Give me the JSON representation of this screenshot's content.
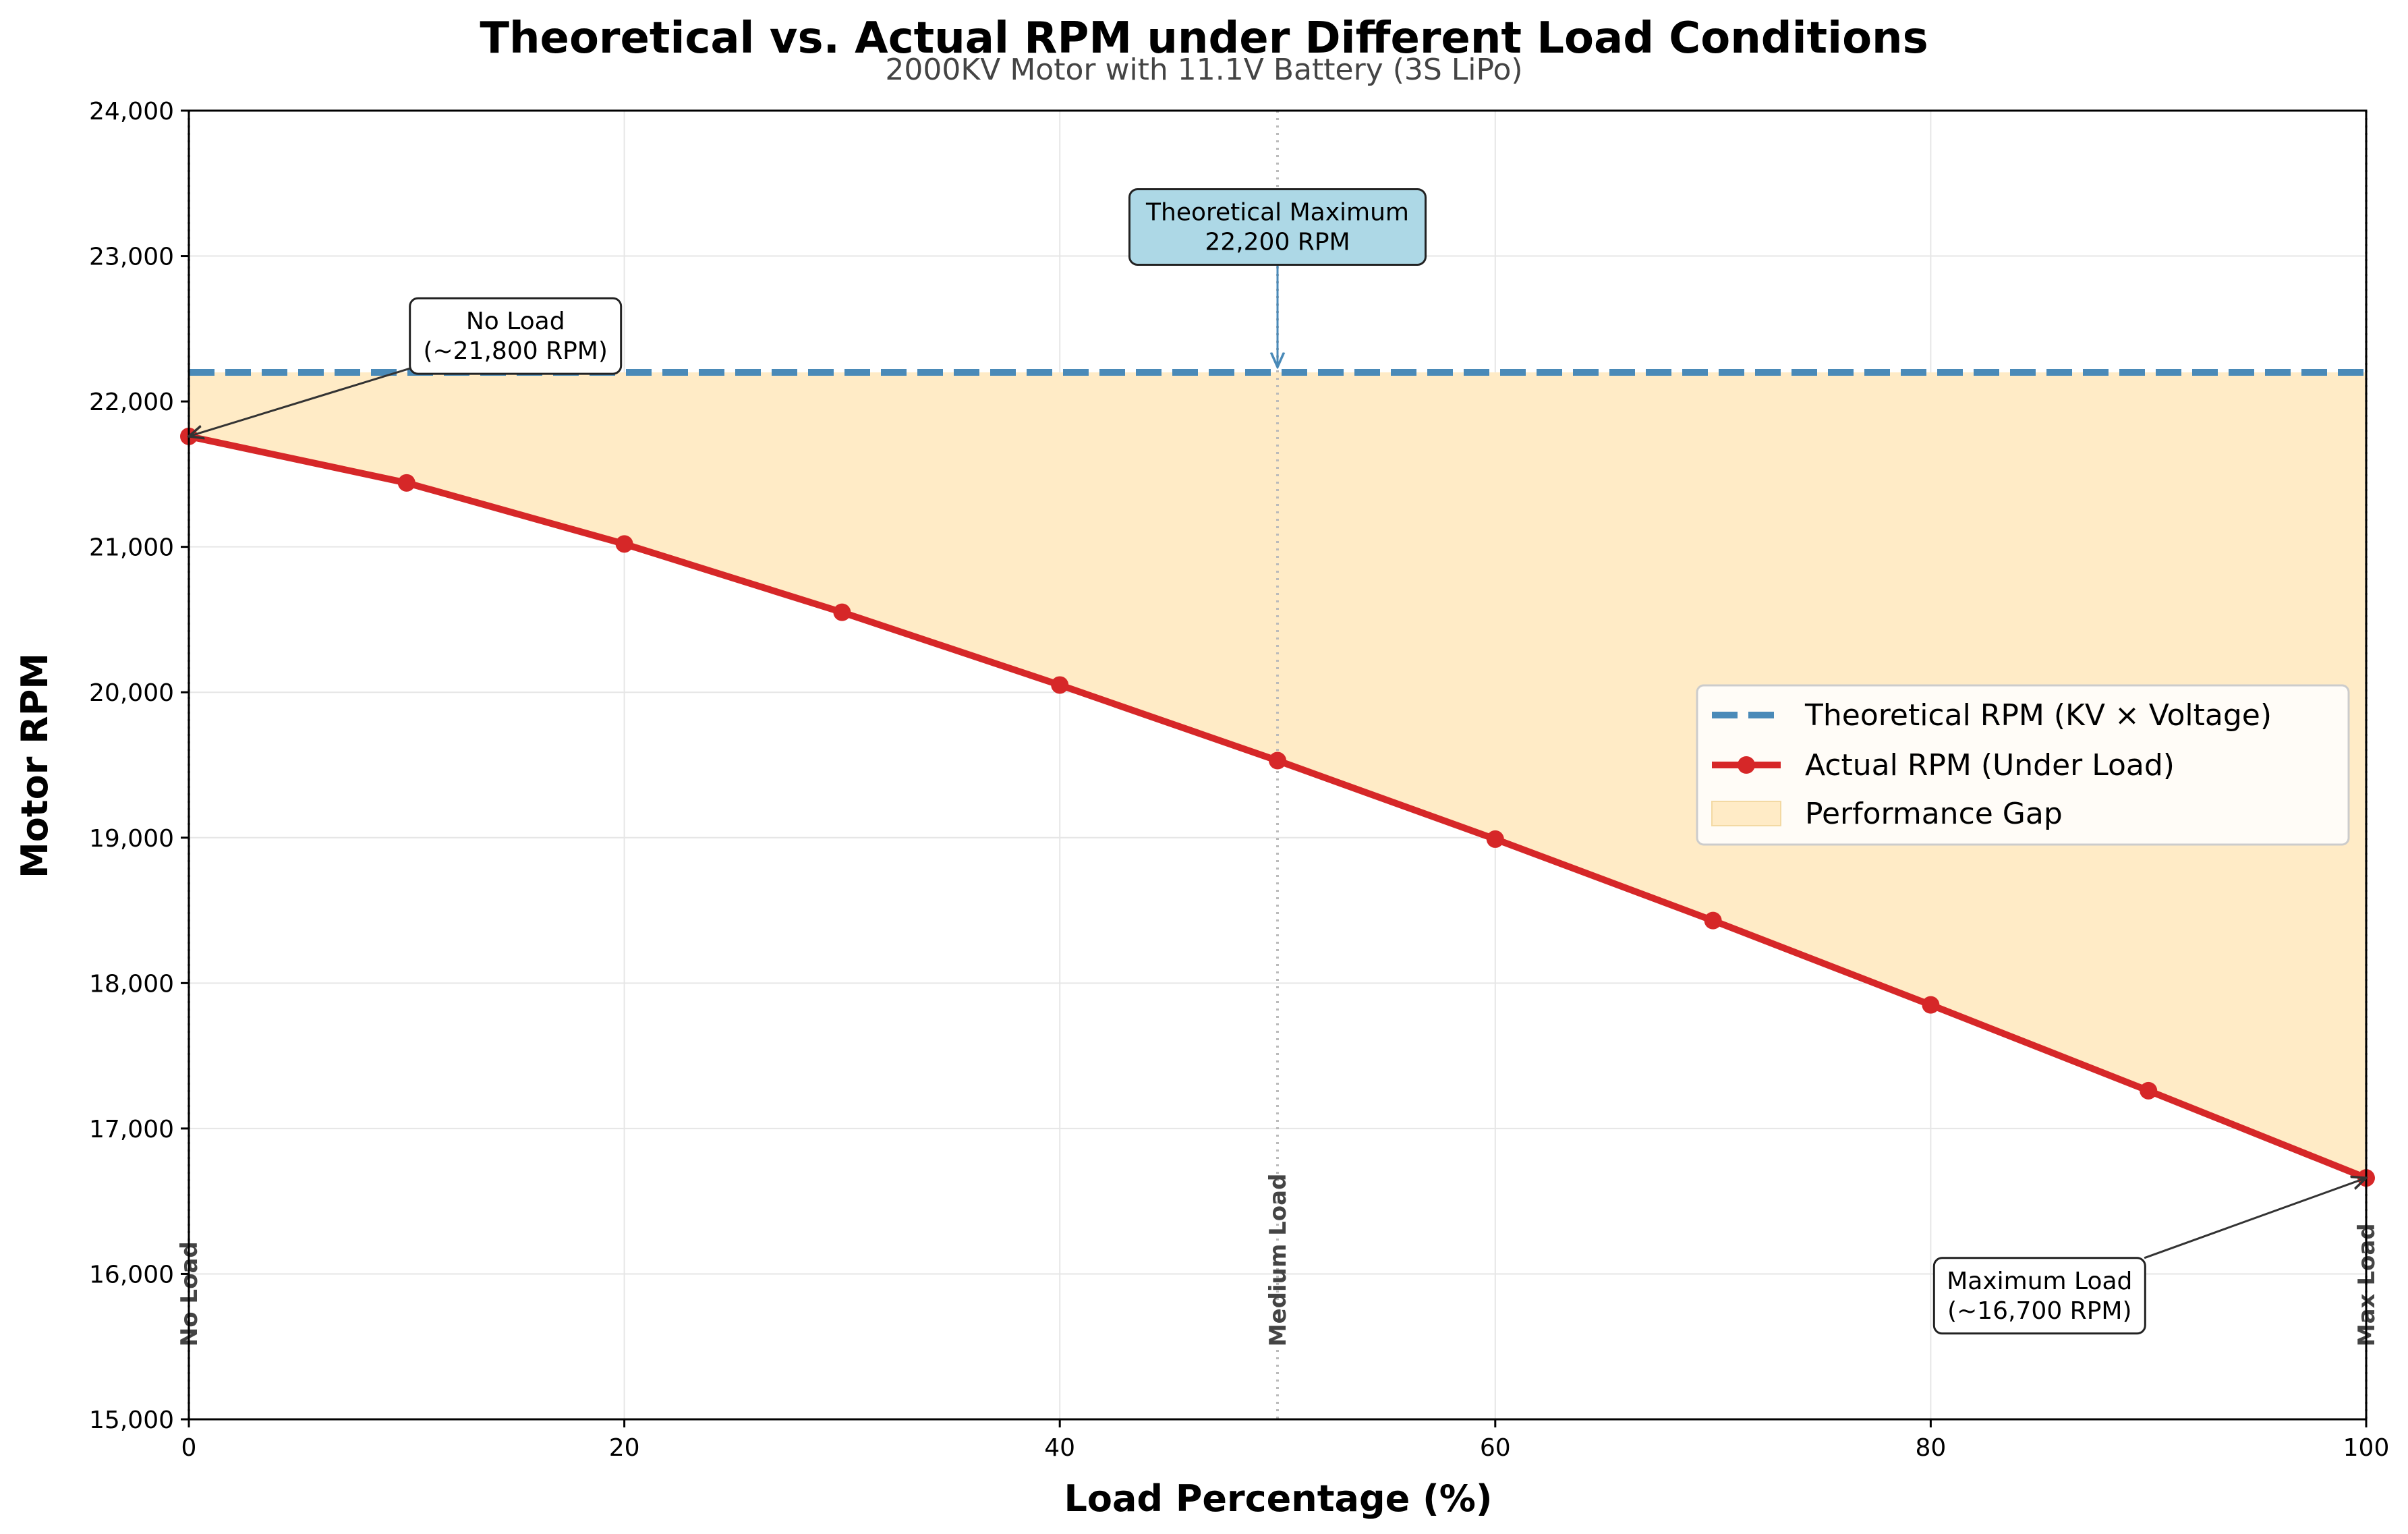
{
  "chart_data": {
    "type": "line",
    "title": "Theoretical vs. Actual RPM under Different Load Conditions",
    "subtitle": "2000KV Motor with 11.1V Battery (3S LiPo)",
    "xlabel": "Load Percentage (%)",
    "ylabel": "Motor RPM",
    "xlim": [
      0,
      100
    ],
    "ylim": [
      15000,
      24000
    ],
    "x_ticks": [
      0,
      20,
      40,
      60,
      80,
      100
    ],
    "x_tick_labels": [
      "0",
      "20",
      "40",
      "60",
      "80",
      "100"
    ],
    "y_ticks": [
      15000,
      16000,
      17000,
      18000,
      19000,
      20000,
      21000,
      22000,
      23000,
      24000
    ],
    "y_tick_labels": [
      "15,000",
      "16,000",
      "17,000",
      "18,000",
      "19,000",
      "20,000",
      "21,000",
      "22,000",
      "23,000",
      "24,000"
    ],
    "grid": true,
    "legend_position": "center-right",
    "series": [
      {
        "name": "Theoretical RPM (KV × Voltage)",
        "style": "dashed",
        "color": "#4a8ab8",
        "x": [
          0,
          100
        ],
        "values": [
          22200,
          22200
        ]
      },
      {
        "name": "Actual RPM (Under Load)",
        "style": "solid-markers",
        "color": "#d62728",
        "x": [
          0,
          10,
          20,
          30,
          40,
          50,
          60,
          70,
          80,
          90,
          100
        ],
        "values": [
          21760,
          21440,
          21020,
          20550,
          20050,
          19530,
          18990,
          18430,
          17850,
          17260,
          16660
        ]
      }
    ],
    "fill": {
      "name": "Performance Gap",
      "color": "#ffebc6"
    },
    "reference_lines": [
      {
        "x": 0,
        "label": "No Load"
      },
      {
        "x": 50,
        "label": "Medium Load"
      },
      {
        "x": 100,
        "label": "Max Load"
      }
    ],
    "annotations": [
      {
        "id": "theoretical",
        "lines": [
          "Theoretical Maximum",
          "22,200 RPM"
        ],
        "target_x": 50,
        "target_y": 22200,
        "text_x": 50,
        "text_y": 23200,
        "bg": "#add8e6",
        "arrow_color": "#4a8ab8"
      },
      {
        "id": "noload",
        "lines": [
          "No Load",
          "(~21,800 RPM)"
        ],
        "target_x": 0,
        "target_y": 21760,
        "text_x": 15,
        "text_y": 22450,
        "bg": "#ffffff",
        "arrow_color": "#333333"
      },
      {
        "id": "maxload",
        "lines": [
          "Maximum Load",
          "(~16,700 RPM)"
        ],
        "target_x": 100,
        "target_y": 16660,
        "text_x": 85,
        "text_y": 15850,
        "bg": "#ffffff",
        "arrow_color": "#333333"
      }
    ]
  }
}
